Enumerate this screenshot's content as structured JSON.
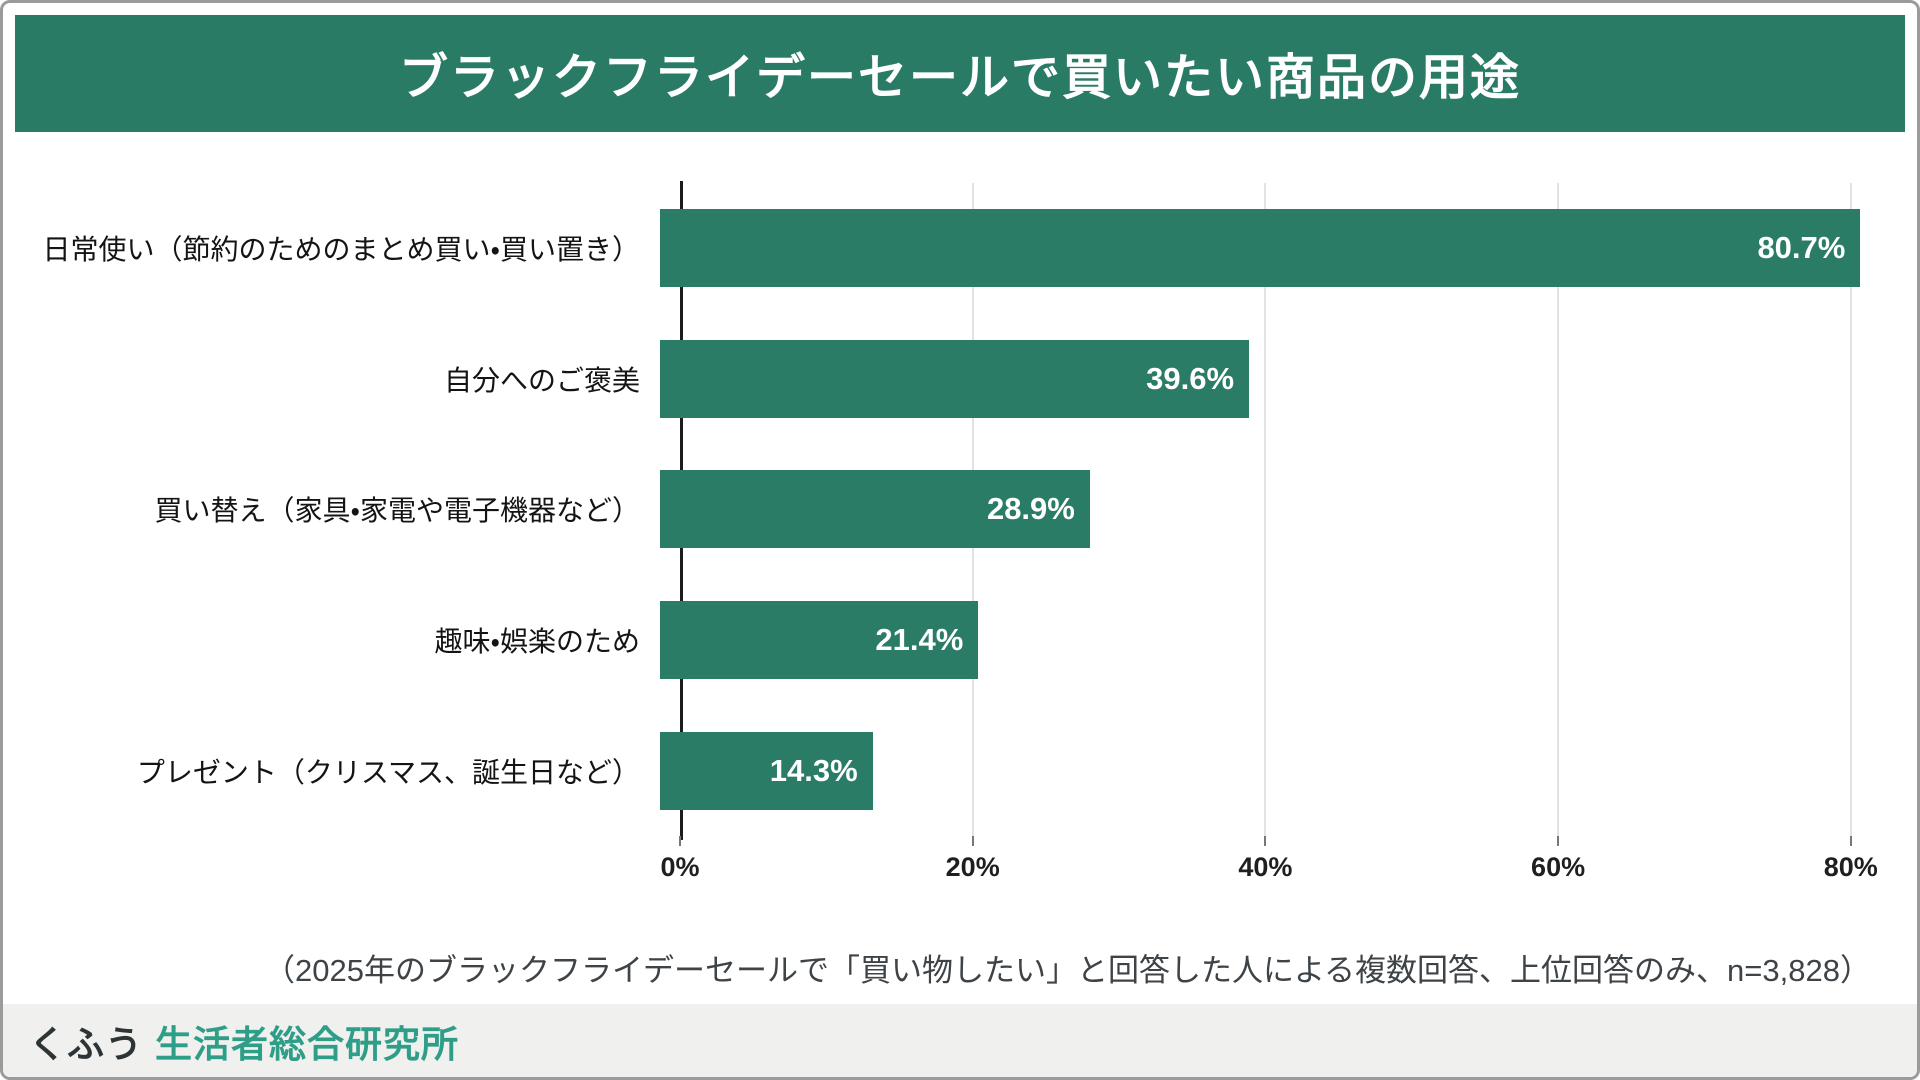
{
  "page": {
    "title": "ブラックフライデーセールで買いたい商品の用途",
    "footnote": "（2025年のブラックフライデーセールで「買い物したい」と回答した人による複数回答、上位回答のみ、n=3,828）"
  },
  "footer": {
    "brand_name": "くふう",
    "brand_suffix": "生活者総合研究所"
  },
  "colors": {
    "header_bg": "#2a7b65",
    "bar": "#2b7c66",
    "brand_dark": "#2d3436",
    "brand_teal": "#2f9e88",
    "footer_bg": "#f0f0ee",
    "gridline": "#e2e2e2"
  },
  "chart_data": {
    "type": "bar",
    "orientation": "horizontal",
    "title": "ブラックフライデーセールで買いたい商品の用途",
    "categories": [
      "日常使い（節約のためのまとめ買い・買い置き）",
      "自分へのご褒美",
      "買い替え（家具・家電や電子機器など）",
      "趣味・娯楽のため",
      "プレゼント（クリスマス、誕生日など）"
    ],
    "values": [
      80.7,
      39.6,
      28.9,
      21.4,
      14.3
    ],
    "value_labels": [
      "80.7%",
      "39.6%",
      "28.9%",
      "21.4%",
      "14.3%"
    ],
    "xlabel": "",
    "ylabel": "",
    "xticks": [
      0,
      20,
      40,
      60,
      80
    ],
    "xtick_labels": [
      "0%",
      "20%",
      "40%",
      "60%",
      "80%"
    ],
    "xlim": [
      0,
      83.5
    ],
    "grid": "vertical",
    "legend": "none",
    "unit": "%",
    "n": "3,828"
  }
}
